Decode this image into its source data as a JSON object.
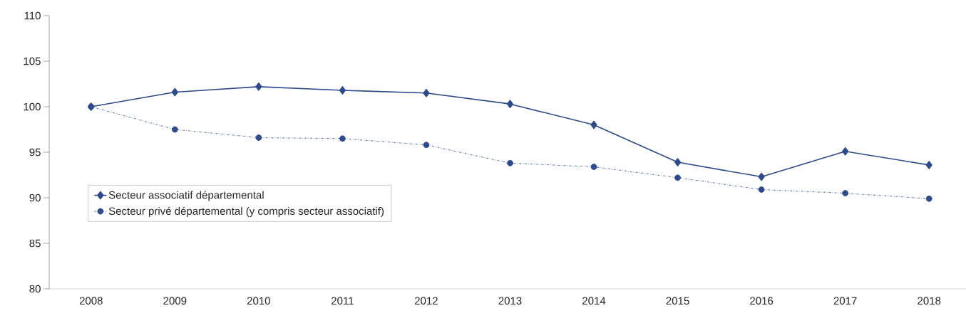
{
  "chart_data": {
    "type": "line",
    "categories": [
      "2008",
      "2009",
      "2010",
      "2011",
      "2012",
      "2013",
      "2014",
      "2015",
      "2016",
      "2017",
      "2018"
    ],
    "series": [
      {
        "name": "Secteur associatif départemental",
        "color": "#2e4a8c",
        "marker": "diamond",
        "line_style": "solid",
        "values": [
          100,
          101.6,
          102.2,
          101.8,
          101.5,
          100.3,
          98.0,
          93.9,
          92.3,
          95.1,
          93.6
        ]
      },
      {
        "name": "Secteur privé départemental (y compris secteur associatif)",
        "color": "#2e4a8c",
        "marker": "circle",
        "line_style": "dashdot",
        "values": [
          100,
          97.5,
          96.6,
          96.5,
          95.8,
          93.8,
          93.4,
          92.2,
          90.9,
          90.5,
          89.9
        ]
      }
    ],
    "ylim": [
      80,
      110
    ],
    "yticks": [
      80,
      85,
      90,
      95,
      100,
      105,
      110
    ],
    "grid": false,
    "legend": "left"
  }
}
